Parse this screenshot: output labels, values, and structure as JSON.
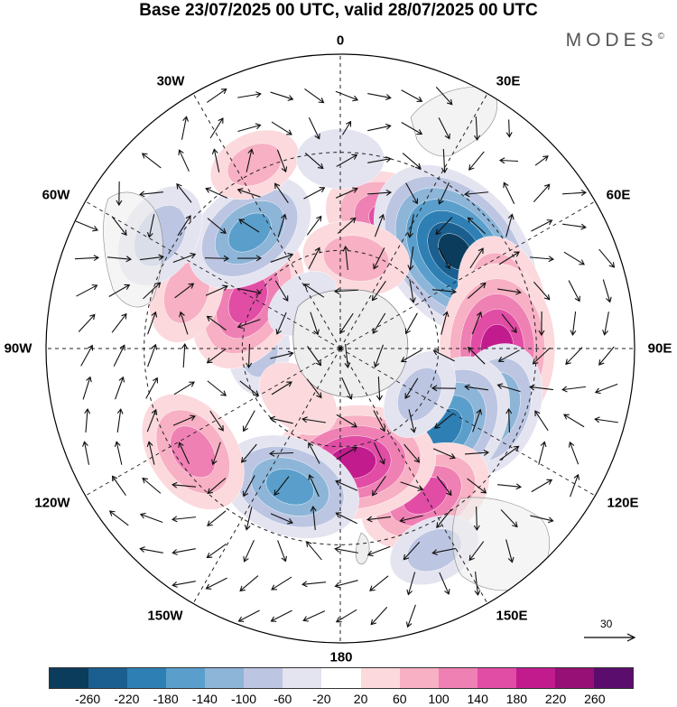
{
  "title": "Base 23/07/2025 00 UTC, valid 28/07/2025 00 UTC",
  "logo": "MODES",
  "logo_mark": "©",
  "longitude_labels": {
    "lon_0": "0",
    "lon_30e": "30E",
    "lon_60e": "60E",
    "lon_90e": "90E",
    "lon_120e": "120E",
    "lon_150e": "150E",
    "lon_180": "180",
    "lon_150w": "150W",
    "lon_120w": "120W",
    "lon_90w": "90W",
    "lon_60w": "60W",
    "lon_30w": "30W"
  },
  "reference_vector": {
    "label": "30"
  },
  "colorbar": {
    "colors": [
      "#0c3c5c",
      "#1a5f8f",
      "#2e7fb4",
      "#5a9fcb",
      "#8db5d8",
      "#bcc6e2",
      "#e4e3f0",
      "#ffffff",
      "#fbd9dc",
      "#f7b0c4",
      "#ef80b3",
      "#e14da5",
      "#c21b8e",
      "#961075",
      "#5b0d6e"
    ],
    "ticks": [
      "-260",
      "-220",
      "-180",
      "-140",
      "-100",
      "-60",
      "-20",
      "20",
      "60",
      "100",
      "140",
      "180",
      "220",
      "260"
    ]
  },
  "anomaly_centers": [
    {
      "lon": 22,
      "lat": -48,
      "value": 150
    },
    {
      "lon": 50,
      "lat": -44,
      "value": -270
    },
    {
      "lon": 72,
      "lat": -38,
      "value": 120
    },
    {
      "lon": 90,
      "lat": -42,
      "value": 215
    },
    {
      "lon": 112,
      "lat": -40,
      "value": -150
    },
    {
      "lon": 128,
      "lat": -50,
      "value": -200
    },
    {
      "lon": 150,
      "lat": -38,
      "value": 150
    },
    {
      "lon": 174,
      "lat": -55,
      "value": 210
    },
    {
      "lon": -160,
      "lat": -45,
      "value": -160
    },
    {
      "lon": -125,
      "lat": -35,
      "value": 130
    },
    {
      "lon": -90,
      "lat": -65,
      "value": -60
    },
    {
      "lon": -62,
      "lat": -58,
      "value": 170
    },
    {
      "lon": -70,
      "lat": -40,
      "value": 80
    },
    {
      "lon": -38,
      "lat": -45,
      "value": -150
    },
    {
      "lon": -58,
      "lat": -25,
      "value": -90
    },
    {
      "lon": -25,
      "lat": -28,
      "value": 60
    },
    {
      "lon": 0,
      "lat": -32,
      "value": -50
    },
    {
      "lon": 10,
      "lat": -62,
      "value": 90
    },
    {
      "lon": -40,
      "lat": -72,
      "value": -30
    },
    {
      "lon": 120,
      "lat": -62,
      "value": -60
    },
    {
      "lon": 155,
      "lat": -22,
      "value": -60
    },
    {
      "lon": -140,
      "lat": -70,
      "value": 50
    }
  ]
}
